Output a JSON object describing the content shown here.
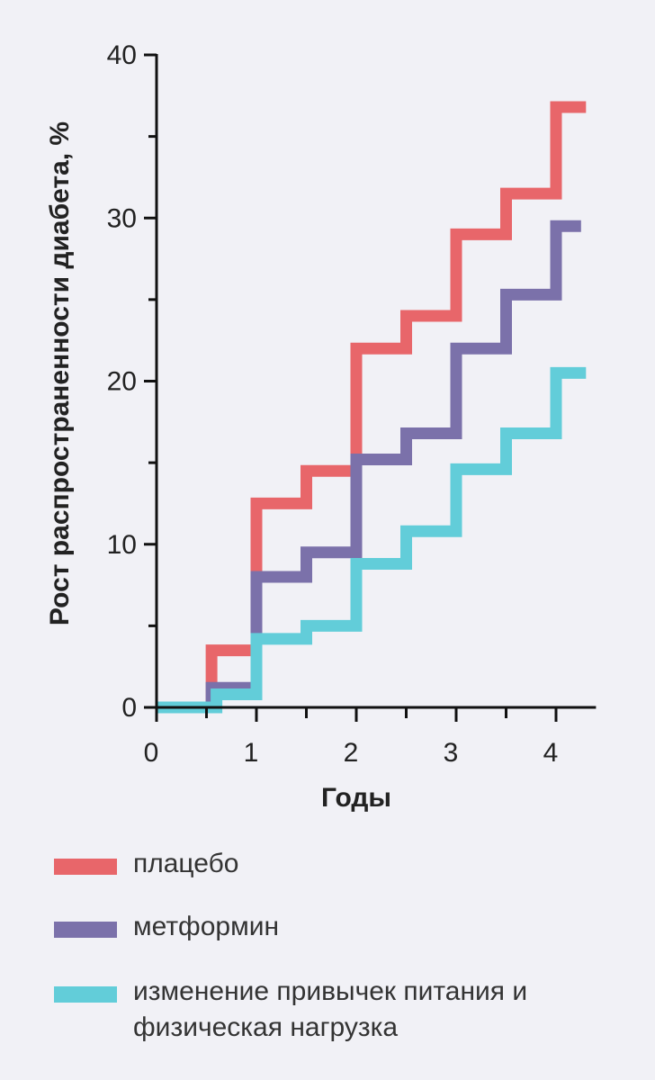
{
  "chart_data": {
    "type": "line",
    "step": true,
    "xlabel": "Годы",
    "ylabel": "Рост распространенности диабета, %",
    "xlim": [
      0,
      4.4
    ],
    "ylim": [
      0,
      40
    ],
    "x_ticks": [
      0,
      1,
      2,
      3,
      4
    ],
    "x_minor_ticks": [
      0.5,
      1.5,
      2.5,
      3.5
    ],
    "y_ticks": [
      0,
      10,
      20,
      30,
      40
    ],
    "y_minor_ticks": [
      5,
      15,
      25,
      35
    ],
    "grid": false,
    "legend_position": "bottom",
    "series": [
      {
        "name": "плацебо",
        "color": "#e8666a",
        "points": [
          [
            0,
            0
          ],
          [
            0.55,
            0
          ],
          [
            0.55,
            3.5
          ],
          [
            1.0,
            3.5
          ],
          [
            1.0,
            12.5
          ],
          [
            1.5,
            12.5
          ],
          [
            1.5,
            14.5
          ],
          [
            2.0,
            14.5
          ],
          [
            2.0,
            22.0
          ],
          [
            2.5,
            22.0
          ],
          [
            2.5,
            24.0
          ],
          [
            3.0,
            24.0
          ],
          [
            3.0,
            29.0
          ],
          [
            3.5,
            29.0
          ],
          [
            3.5,
            31.5
          ],
          [
            4.0,
            31.5
          ],
          [
            4.0,
            36.8
          ],
          [
            4.3,
            36.8
          ]
        ]
      },
      {
        "name": "метформин",
        "color": "#7b71aa",
        "points": [
          [
            0,
            0
          ],
          [
            0.55,
            0
          ],
          [
            0.55,
            1.2
          ],
          [
            1.0,
            1.2
          ],
          [
            1.0,
            8.0
          ],
          [
            1.5,
            8.0
          ],
          [
            1.5,
            9.5
          ],
          [
            2.0,
            9.5
          ],
          [
            2.0,
            15.2
          ],
          [
            2.5,
            15.2
          ],
          [
            2.5,
            16.8
          ],
          [
            3.0,
            16.8
          ],
          [
            3.0,
            22.0
          ],
          [
            3.5,
            22.0
          ],
          [
            3.5,
            25.3
          ],
          [
            4.0,
            25.3
          ],
          [
            4.0,
            29.5
          ],
          [
            4.25,
            29.5
          ]
        ]
      },
      {
        "name": "изменение привычек питания и физическая нагрузка",
        "color": "#62cdd9",
        "points": [
          [
            0,
            0
          ],
          [
            0.6,
            0
          ],
          [
            0.6,
            0.8
          ],
          [
            1.0,
            0.8
          ],
          [
            1.0,
            4.2
          ],
          [
            1.5,
            4.2
          ],
          [
            1.5,
            5.0
          ],
          [
            2.0,
            5.0
          ],
          [
            2.0,
            8.8
          ],
          [
            2.5,
            8.8
          ],
          [
            2.5,
            10.8
          ],
          [
            3.0,
            10.8
          ],
          [
            3.0,
            14.6
          ],
          [
            3.5,
            14.6
          ],
          [
            3.5,
            16.8
          ],
          [
            4.0,
            16.8
          ],
          [
            4.0,
            20.5
          ],
          [
            4.3,
            20.5
          ]
        ]
      }
    ]
  },
  "legend": {
    "items": [
      {
        "label": "плацебо",
        "color": "#e8666a"
      },
      {
        "label": "метформин",
        "color": "#7b71aa"
      },
      {
        "label": "изменение привычек питания и физическая нагрузка",
        "color": "#62cdd9"
      }
    ]
  }
}
